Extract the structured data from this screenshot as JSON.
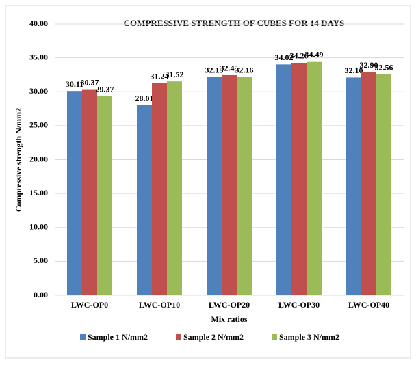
{
  "chart_data": {
    "type": "bar",
    "title": "COMPRESSIVE STRENGTH OF CUBES FOR 14 DAYS",
    "x_label": "Mix ratios",
    "y_label": "Compressive strength N/mm2",
    "categories": [
      "LWC-OP0",
      "LWC-OP10",
      "LWC-OP20",
      "LWC-OP30",
      "LWC-OP40"
    ],
    "series": [
      {
        "name": "Sample 1 N/mm2",
        "color": "#4f81bd",
        "values": [
          30.11,
          28.01,
          32.15,
          34.02,
          32.1
        ],
        "value_labels": [
          "30.11",
          "28.01",
          "32.15",
          "34.02",
          "32.10"
        ]
      },
      {
        "name": "Sample 2 N/mm2",
        "color": "#c0504d",
        "values": [
          30.37,
          31.24,
          32.45,
          34.26,
          32.9
        ],
        "value_labels": [
          "30.37",
          "31.24",
          "32.45",
          "34.26",
          "32.90"
        ]
      },
      {
        "name": "Sample 3 N/mm2",
        "color": "#9bbb59",
        "values": [
          29.37,
          31.52,
          32.16,
          34.49,
          32.56
        ],
        "value_labels": [
          "29.37",
          "31.52",
          "32.16",
          "34.49",
          "32.56"
        ]
      }
    ],
    "ylim": [
      0,
      40
    ],
    "yticks": [
      {
        "value": 0,
        "label": "0.00"
      },
      {
        "value": 5,
        "label": "5.00"
      },
      {
        "value": 10,
        "label": "10.00"
      },
      {
        "value": 15,
        "label": "15.00"
      },
      {
        "value": 20,
        "label": "20.00"
      },
      {
        "value": 25,
        "label": "25.00"
      },
      {
        "value": 30,
        "label": "30.00"
      },
      {
        "value": 35,
        "label": "35.00"
      },
      {
        "value": 40,
        "label": "40.00"
      }
    ],
    "grid": true,
    "legend": "bottom"
  }
}
